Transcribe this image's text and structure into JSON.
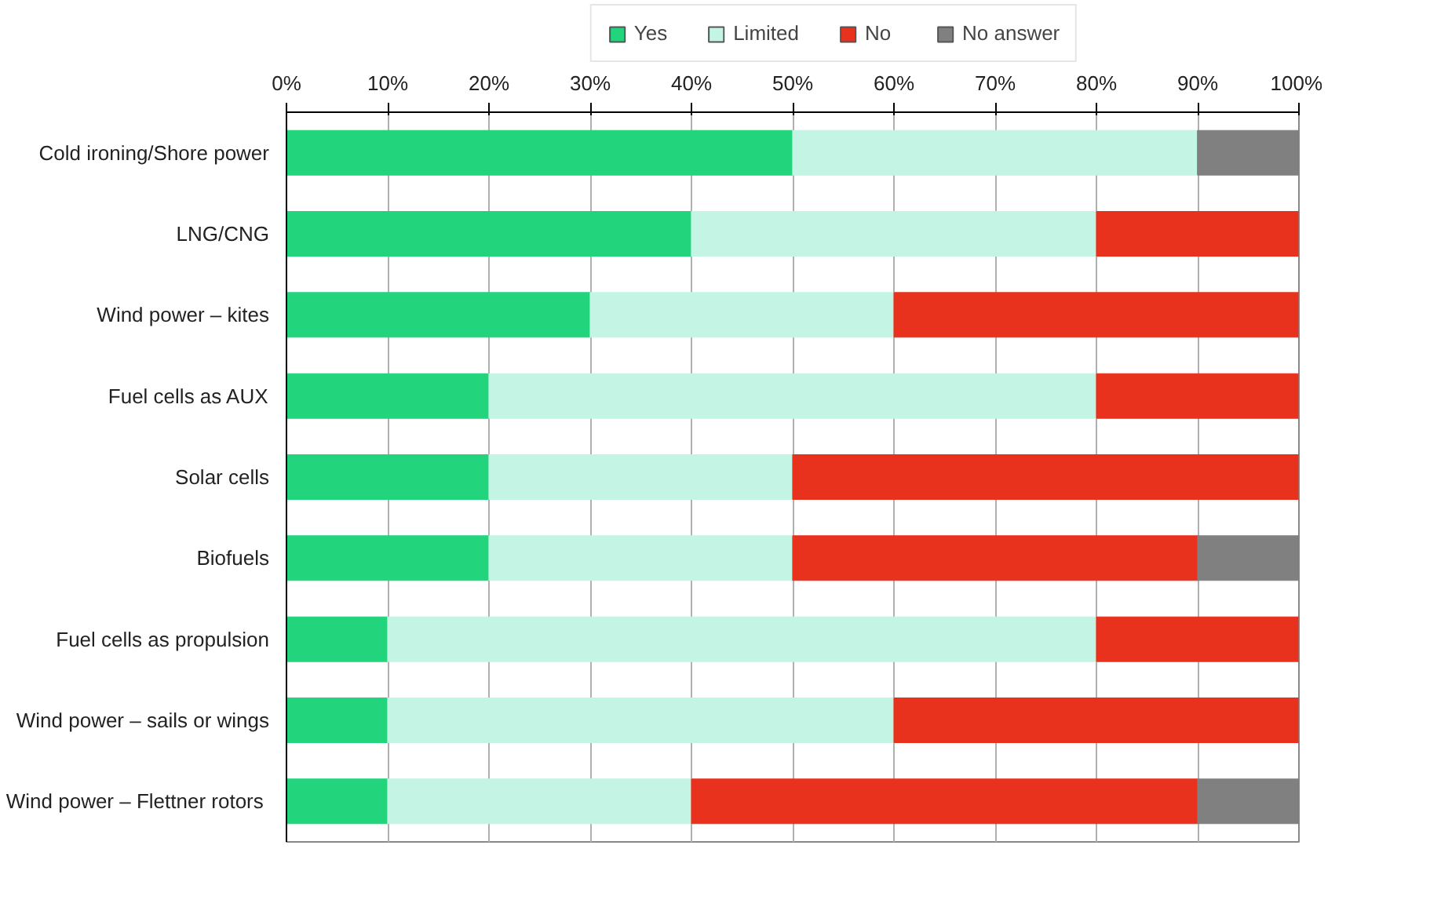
{
  "chart_data": {
    "type": "bar",
    "orientation": "horizontal",
    "stacked": true,
    "categories": [
      "Cold ironing/Shore power",
      "LNG/CNG",
      "Wind power – kites",
      "Fuel cells as AUX",
      "Solar cells",
      "Biofuels",
      "Fuel cells as propulsion",
      "Wind power – sails or wings",
      "Wind power –  Flettner rotors"
    ],
    "series": [
      {
        "name": "Yes",
        "color": "#22d47c",
        "values": [
          50,
          40,
          30,
          20,
          20,
          20,
          10,
          10,
          10
        ]
      },
      {
        "name": "Limited",
        "color": "#c4f4e4",
        "values": [
          40,
          40,
          30,
          60,
          30,
          30,
          70,
          50,
          30
        ]
      },
      {
        "name": "No",
        "color": "#e8321e",
        "values": [
          0,
          20,
          40,
          20,
          50,
          40,
          20,
          40,
          50
        ]
      },
      {
        "name": "No answer",
        "color": "#808080",
        "values": [
          10,
          0,
          0,
          0,
          0,
          10,
          0,
          0,
          10
        ]
      }
    ],
    "xlim": [
      0,
      100
    ],
    "xticks": [
      {
        "value": 0,
        "label": "0%"
      },
      {
        "value": 10,
        "label": "10%"
      },
      {
        "value": 20,
        "label": "20%"
      },
      {
        "value": 30,
        "label": "30%"
      },
      {
        "value": 40,
        "label": "40%"
      },
      {
        "value": 50,
        "label": "50%"
      },
      {
        "value": 60,
        "label": "60%"
      },
      {
        "value": 70,
        "label": "70%"
      },
      {
        "value": 80,
        "label": "80%"
      },
      {
        "value": 90,
        "label": "90%"
      },
      {
        "value": 100,
        "label": "100%"
      }
    ],
    "grid": "x",
    "legend": "top"
  }
}
